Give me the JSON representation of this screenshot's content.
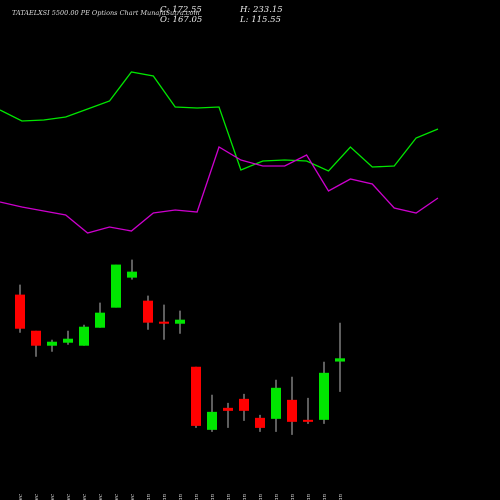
{
  "chart_data": [
    {
      "type": "candlestick",
      "title": "TATAELXSI 5500.00 PE Options Chart MunafaSutra.com",
      "ohlc_labels": [
        "C: 172.55",
        "O: 167.05",
        "H: 233.15",
        "L: 115.55"
      ],
      "categories": [
        "19 Dec",
        "20 Dec",
        "23 Dec",
        "24 Dec",
        "26 Dec",
        "27 Dec",
        "30 Dec",
        "31 Dec",
        "01 Jan",
        "02 Jan",
        "03 Jan",
        "06 Jan",
        "07 Jan",
        "08 Jan",
        "09 Jan",
        "10 Jan",
        "13 Jan",
        "14 Jan",
        "15 Jan",
        "16 Jan",
        "17 Jan"
      ],
      "open": [
        280.9,
        219.5,
        194.0,
        199.1,
        194.0,
        224.6,
        258.7,
        309.8,
        270.6,
        234.9,
        231.4,
        158.2,
        50.9,
        88.3,
        103.6,
        71.3,
        69.6,
        101.9,
        67.9,
        67.9,
        167.05
      ],
      "high": [
        297.9,
        219.5,
        204.2,
        219.5,
        229.7,
        267.2,
        332.0,
        340.5,
        279.2,
        263.8,
        253.6,
        158.2,
        110.5,
        96.8,
        112.1,
        76.4,
        136.0,
        141.1,
        105.3,
        166.7,
        233.15
      ],
      "low": [
        216.1,
        175.2,
        183.7,
        195.7,
        194.0,
        224.6,
        258.7,
        306.4,
        221.2,
        204.2,
        214.4,
        54.2,
        47.4,
        54.2,
        66.2,
        47.4,
        47.4,
        42.3,
        61.1,
        61.1,
        115.55
      ],
      "close": [
        222.9,
        194.0,
        200.8,
        205.9,
        226.3,
        250.2,
        332.0,
        320.0,
        233.2,
        231.4,
        238.3,
        57.6,
        81.5,
        83.2,
        83.2,
        54.2,
        122.4,
        64.5,
        64.5,
        147.9,
        172.55
      ],
      "up_color": "#00e600",
      "down_color": "#ff0000",
      "ylim": [
        20,
        350
      ]
    },
    {
      "type": "line",
      "x": [
        0,
        1,
        2,
        3,
        4,
        5,
        6,
        7,
        8,
        9,
        10,
        11,
        12,
        13,
        14,
        15,
        16,
        17,
        18,
        19,
        20
      ],
      "xlim": [
        0,
        20
      ],
      "series": [
        {
          "color": "#00e600",
          "values": [
            390,
            379,
            380,
            383,
            391,
            399,
            428,
            424,
            393,
            392,
            393,
            330,
            339,
            340,
            339,
            329,
            353,
            333,
            334,
            362,
            371
          ]
        },
        {
          "color": "#cc00cc",
          "values": [
            298,
            293,
            289,
            285,
            267,
            273,
            269,
            287,
            290,
            288,
            353,
            340,
            334,
            334,
            345,
            309,
            321,
            316,
            292,
            287,
            302
          ]
        }
      ],
      "ylim": [
        250,
        450
      ]
    }
  ]
}
